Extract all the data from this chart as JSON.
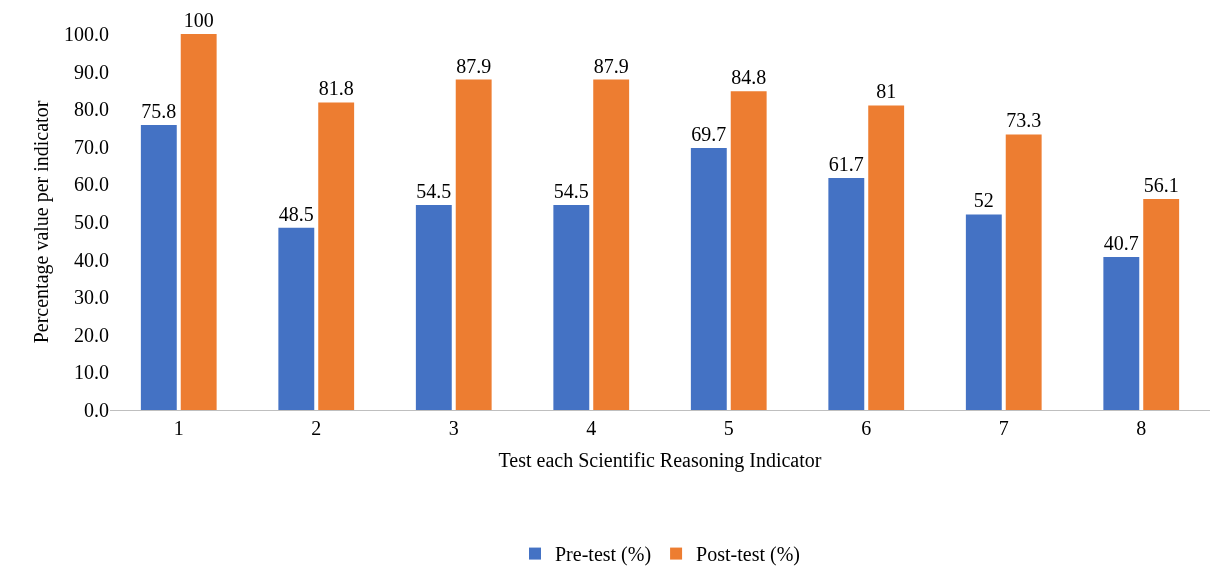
{
  "chart_data": {
    "type": "bar",
    "xlabel": "Test each Scientific Reasoning Indicator",
    "ylabel": "Percentage value per indicator",
    "categories": [
      "1",
      "2",
      "3",
      "4",
      "5",
      "6",
      "7",
      "8"
    ],
    "series": [
      {
        "name": "Pre-test (%)",
        "color": "#4472c4",
        "values": [
          75.8,
          48.5,
          54.5,
          54.5,
          69.7,
          61.7,
          52,
          40.7
        ]
      },
      {
        "name": "Post-test (%)",
        "color": "#ed7d31",
        "values": [
          100,
          81.8,
          87.9,
          87.9,
          84.8,
          81,
          73.3,
          56.1
        ]
      }
    ],
    "ylim": [
      0,
      100
    ],
    "yticks": [
      {
        "value": 0,
        "label": "0.0"
      },
      {
        "value": 10,
        "label": "10.0"
      },
      {
        "value": 20,
        "label": "20.0"
      },
      {
        "value": 30,
        "label": "30.0"
      },
      {
        "value": 40,
        "label": "40.0"
      },
      {
        "value": 50,
        "label": "50.0"
      },
      {
        "value": 60,
        "label": "60.0"
      },
      {
        "value": 70,
        "label": "70.0"
      },
      {
        "value": 80,
        "label": "80.0"
      },
      {
        "value": 90,
        "label": "90.0"
      },
      {
        "value": 100,
        "label": "100.0"
      }
    ],
    "grid": false,
    "legend": "bottom",
    "data_labels": true
  }
}
